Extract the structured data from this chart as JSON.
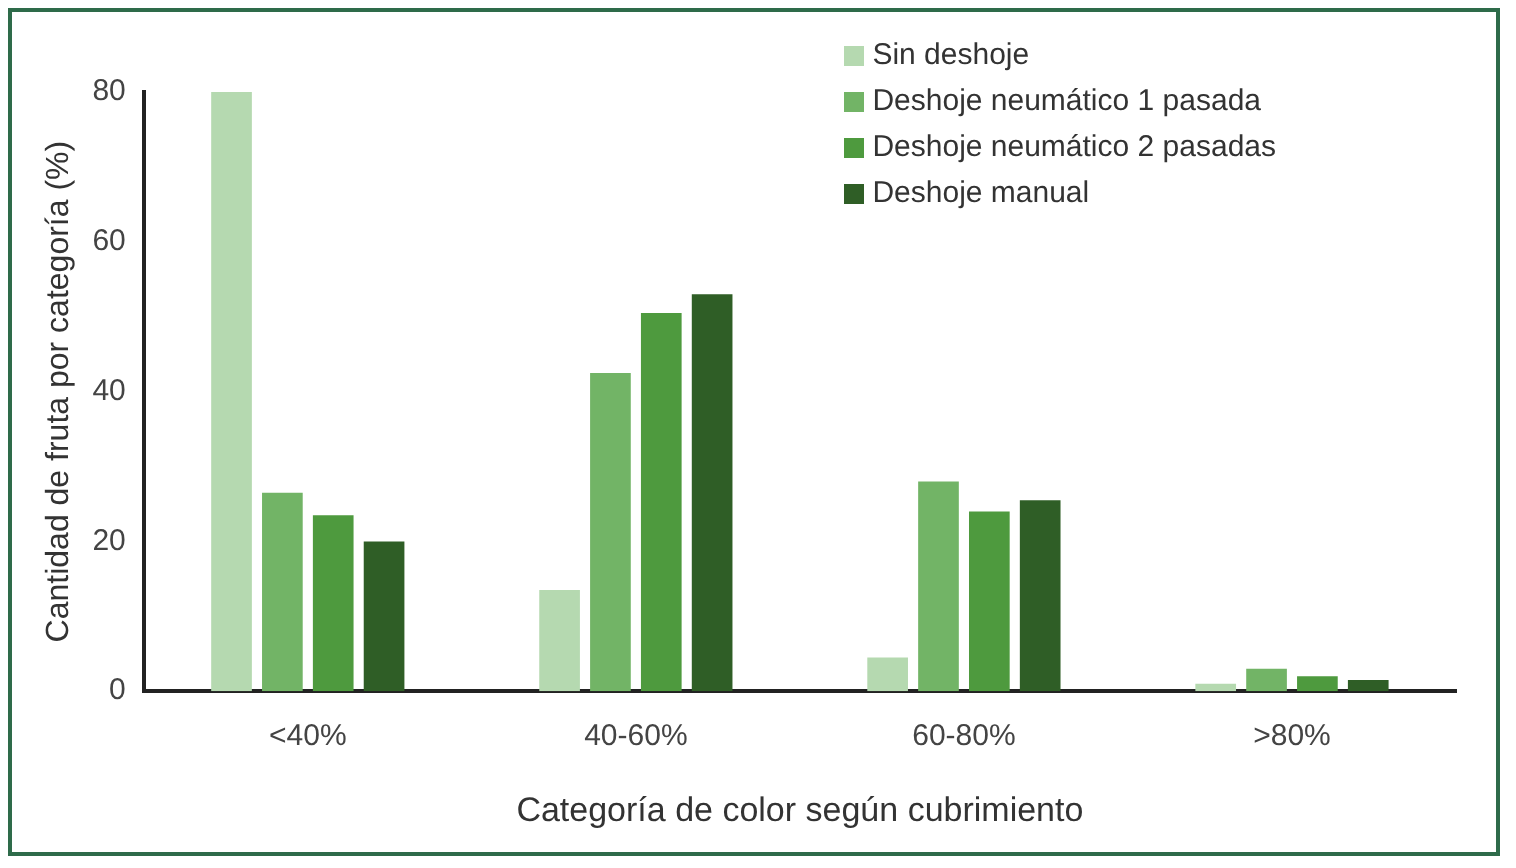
{
  "chart_data": {
    "type": "bar",
    "xlabel": "Categoría de color según cubrimiento",
    "ylabel": "Cantidad de fruta por categoría (%)",
    "categories": [
      "<40%",
      "40-60%",
      "60-80%",
      ">80%"
    ],
    "series": [
      {
        "name": "Sin deshoje",
        "color": "#b5d9b0",
        "values": [
          80,
          13.5,
          4.5,
          1
        ]
      },
      {
        "name": "Deshoje neumático 1 pasada",
        "color": "#72b466",
        "values": [
          26.5,
          42.5,
          28,
          3
        ]
      },
      {
        "name": "Deshoje neumático 2 pasadas",
        "color": "#4e9a3e",
        "values": [
          23.5,
          50.5,
          24,
          2
        ]
      },
      {
        "name": "Deshoje manual",
        "color": "#2f5e26",
        "values": [
          20,
          53,
          25.5,
          1.5
        ]
      }
    ],
    "ylim": [
      0,
      80
    ],
    "yticks": [
      0,
      20,
      40,
      60,
      80
    ],
    "grid": false,
    "legend": "top right"
  }
}
